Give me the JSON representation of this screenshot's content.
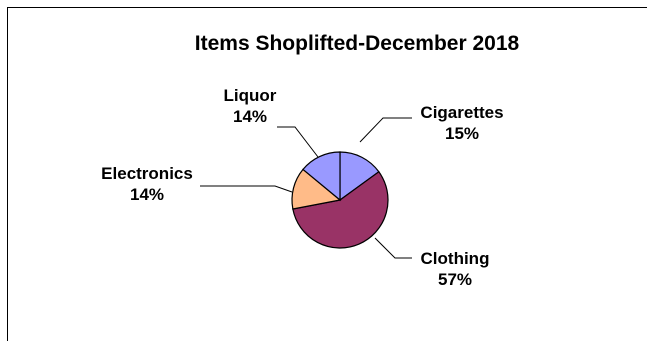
{
  "chart_data": {
    "type": "pie",
    "title": "Items Shoplifted-December  2018",
    "slices": [
      {
        "label": "Cigarettes",
        "value": 15,
        "value_label": "15%",
        "color": "#9999FF"
      },
      {
        "label": "Clothing",
        "value": 57,
        "value_label": "57%",
        "color": "#993366"
      },
      {
        "label": "Electronics",
        "value": 14,
        "value_label": "14%",
        "color": "#FFBB88"
      },
      {
        "label": "Liquor",
        "value": 14,
        "value_label": "14%",
        "color": "#9999FF"
      }
    ],
    "legend": "none",
    "start_angle": "12 o'clock",
    "direction": "clockwise"
  }
}
